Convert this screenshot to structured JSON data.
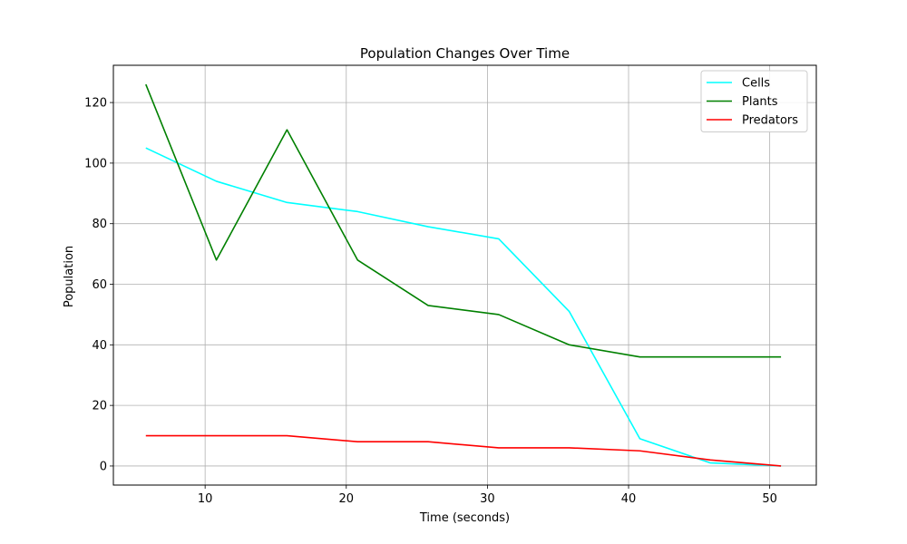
{
  "chart_data": {
    "type": "line",
    "title": "Population Changes Over Time",
    "xlabel": "Time (seconds)",
    "ylabel": "Population",
    "xlim": [
      3.5,
      53.3
    ],
    "ylim": [
      -6.3,
      132.3
    ],
    "xticks": [
      10,
      20,
      30,
      40,
      50
    ],
    "yticks": [
      0,
      20,
      40,
      60,
      80,
      100,
      120
    ],
    "grid": true,
    "legend_position": "top-right",
    "x": [
      5.8,
      10.8,
      15.8,
      20.8,
      25.8,
      30.8,
      35.8,
      40.8,
      45.8,
      50.8
    ],
    "series": [
      {
        "name": "Cells",
        "color": "#00ffff",
        "values": [
          105,
          94,
          87,
          84,
          79,
          75,
          51,
          9,
          1,
          0
        ]
      },
      {
        "name": "Plants",
        "color": "#008000",
        "values": [
          126,
          68,
          111,
          68,
          53,
          50,
          40,
          36,
          36,
          36
        ]
      },
      {
        "name": "Predators",
        "color": "#ff0000",
        "values": [
          10,
          10,
          10,
          8,
          8,
          6,
          6,
          5,
          2,
          0
        ]
      }
    ]
  }
}
